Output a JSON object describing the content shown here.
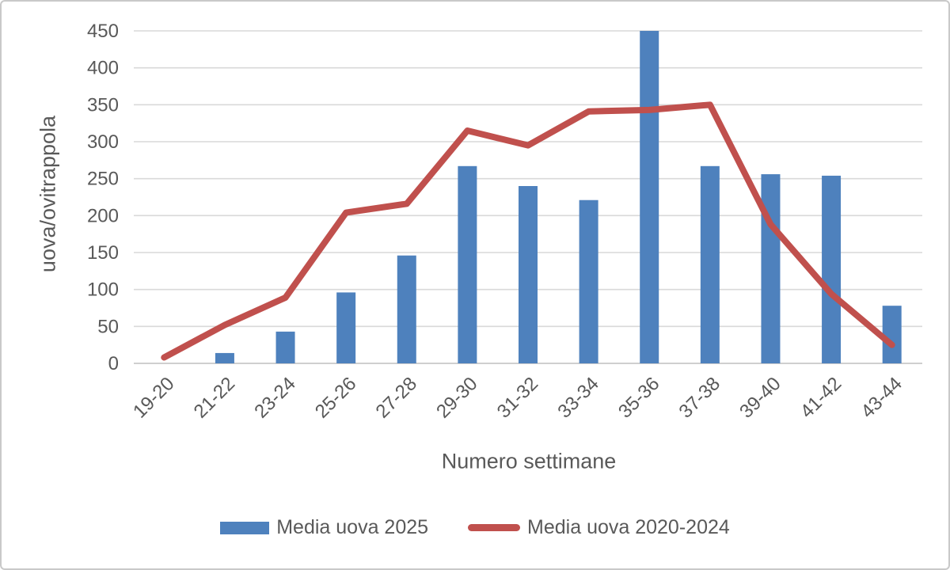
{
  "chart_data": {
    "type": "combo",
    "title": "",
    "xlabel": "Numero settimane",
    "ylabel": "uova/ovitrappola",
    "categories": [
      "19-20",
      "21-22",
      "23-24",
      "25-26",
      "27-28",
      "29-30",
      "31-32",
      "33-34",
      "35-36",
      "37-38",
      "39-40",
      "41-42",
      "43-44"
    ],
    "series": [
      {
        "name": "Media uova 2025",
        "type": "bar",
        "color": "#4E81BD",
        "values": [
          null,
          14,
          43,
          96,
          146,
          267,
          240,
          221,
          450,
          267,
          256,
          254,
          78
        ]
      },
      {
        "name": "Media uova 2020-2024",
        "type": "line",
        "color": "#C0504D",
        "values": [
          8,
          52,
          89,
          204,
          216,
          315,
          295,
          341,
          343,
          350,
          188,
          94,
          25
        ]
      }
    ],
    "ylim": [
      0,
      450
    ],
    "ytick_step": 50,
    "grid": true,
    "legend_position": "bottom"
  },
  "colors": {
    "gridline": "#D9D9D9",
    "axis_line": "#BFBFBF",
    "tick_text": "#595959",
    "frame_border": "#C9C9C9",
    "background": "#FFFFFF"
  }
}
